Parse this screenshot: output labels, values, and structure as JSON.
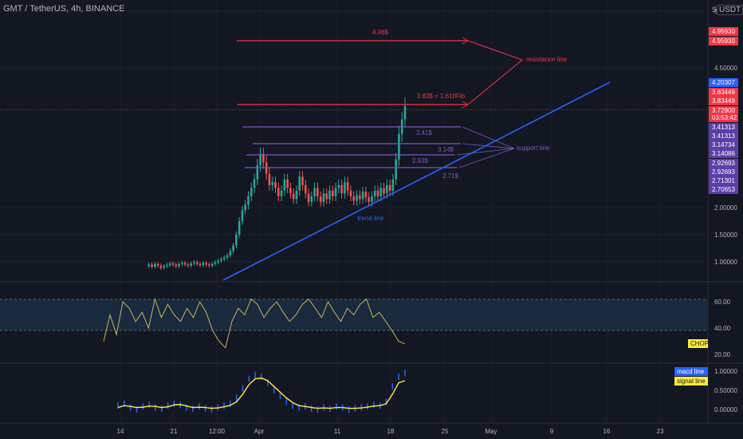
{
  "header": {
    "symbol": "GMT / TetherUS, 4h, BINANCE",
    "currency": "USDT",
    "scale_marker": "S"
  },
  "colors": {
    "background": "#131722",
    "up": "#26a69a",
    "down": "#ef5350",
    "resistance": "#f23645",
    "support": "#7e57c2",
    "trend": "#2962ff",
    "chop": "#c9b458",
    "macd": "#ffeb3b",
    "signal": "#2962ff"
  },
  "chart_data": [
    {
      "type": "candlestick",
      "title": "",
      "x_ticks": [
        "14",
        "21",
        "12:00",
        "Apr",
        "11",
        "18",
        "25",
        "May",
        "9",
        "16",
        "23"
      ],
      "y_ticks": [
        "5",
        "4.50000",
        "2.00000",
        "1.50000",
        "1.00000"
      ],
      "price_labels": [
        "4.95930",
        "4.95930",
        "4.20307",
        "3.83449",
        "3.83449",
        "3.72900",
        "03:53:42",
        "3.41313",
        "3.41313",
        "3.14734",
        "3.14086",
        "2.92693",
        "2.92693",
        "2.71301",
        "2.70653"
      ],
      "current_price": 3.729,
      "resistance_levels": [
        {
          "price": 4.96,
          "label": "4.96$"
        },
        {
          "price": 3.83,
          "label": "3.83$ = 1.618Fib"
        }
      ],
      "support_levels": [
        {
          "price": 3.41,
          "label": "3.41$"
        },
        {
          "price": 3.14,
          "label": "3.14$"
        },
        {
          "price": 2.93,
          "label": "2.93$"
        },
        {
          "price": 2.71,
          "label": "2.71$"
        }
      ],
      "annotations": [
        "resistance line",
        "support line",
        "trend line"
      ],
      "price_path": [
        0.92,
        0.95,
        0.91,
        0.96,
        0.93,
        0.89,
        0.92,
        0.94,
        0.97,
        0.95,
        0.92,
        0.96,
        0.98,
        0.95,
        0.93,
        0.97,
        0.99,
        0.96,
        0.94,
        0.98,
        0.95,
        0.93,
        0.96,
        0.99,
        1.02,
        1.05,
        1.08,
        1.12,
        1.2,
        1.3,
        1.5,
        1.75,
        1.95,
        2.05,
        2.2,
        2.35,
        2.5,
        2.75,
        2.95,
        2.8,
        2.6,
        2.4,
        2.45,
        2.35,
        2.2,
        2.3,
        2.5,
        2.35,
        2.25,
        2.15,
        2.3,
        2.55,
        2.4,
        2.25,
        2.1,
        2.2,
        2.35,
        2.2,
        2.1,
        2.25,
        2.15,
        2.3,
        2.2,
        2.35,
        2.4,
        2.25,
        2.45,
        2.3,
        2.2,
        2.12,
        2.22,
        2.15,
        2.28,
        2.18,
        2.1,
        2.2,
        2.3,
        2.2,
        2.35,
        2.25,
        2.4,
        2.3,
        2.5,
        2.85,
        3.3,
        3.55,
        3.8
      ]
    },
    {
      "type": "line",
      "title": "",
      "legend": [
        "CHOP"
      ],
      "y_ticks": [
        "60.00",
        "40.00",
        "20.00"
      ],
      "band": [
        38.2,
        61.8
      ],
      "values": [
        30,
        50,
        35,
        60,
        55,
        45,
        52,
        40,
        62,
        48,
        58,
        50,
        45,
        55,
        48,
        60,
        52,
        38,
        30,
        25,
        45,
        55,
        50,
        62,
        58,
        48,
        55,
        60,
        52,
        45,
        50,
        58,
        62,
        55,
        48,
        60,
        52,
        45,
        55,
        50,
        58,
        62,
        48,
        52,
        45,
        38,
        30,
        28
      ]
    },
    {
      "type": "line",
      "title": "",
      "legend": [
        "macd line",
        "signal line"
      ],
      "y_ticks": [
        "1.00000",
        "0.50000",
        "0.00000"
      ],
      "series": [
        {
          "name": "macd line",
          "values": [
            0.1,
            0.15,
            0.05,
            0.0,
            0.08,
            0.12,
            0.05,
            0.02,
            0.1,
            0.15,
            0.12,
            0.05,
            0.02,
            0.08,
            0.03,
            0.0,
            0.05,
            0.1,
            0.15,
            0.3,
            0.55,
            0.8,
            0.9,
            0.85,
            0.7,
            0.5,
            0.35,
            0.2,
            0.1,
            0.05,
            0.08,
            0.02,
            0.0,
            0.05,
            0.02,
            0.08,
            0.05,
            0.0,
            0.03,
            0.05,
            0.08,
            0.12,
            0.1,
            0.2,
            0.6,
            0.85,
            0.95
          ]
        },
        {
          "name": "signal line",
          "values": [
            0.05,
            0.1,
            0.08,
            0.05,
            0.06,
            0.09,
            0.08,
            0.05,
            0.07,
            0.12,
            0.13,
            0.09,
            0.05,
            0.06,
            0.05,
            0.03,
            0.04,
            0.07,
            0.11,
            0.2,
            0.4,
            0.65,
            0.8,
            0.82,
            0.75,
            0.6,
            0.45,
            0.3,
            0.18,
            0.1,
            0.08,
            0.05,
            0.03,
            0.04,
            0.03,
            0.05,
            0.05,
            0.03,
            0.03,
            0.04,
            0.06,
            0.09,
            0.1,
            0.15,
            0.4,
            0.7,
            0.75
          ]
        }
      ]
    }
  ]
}
